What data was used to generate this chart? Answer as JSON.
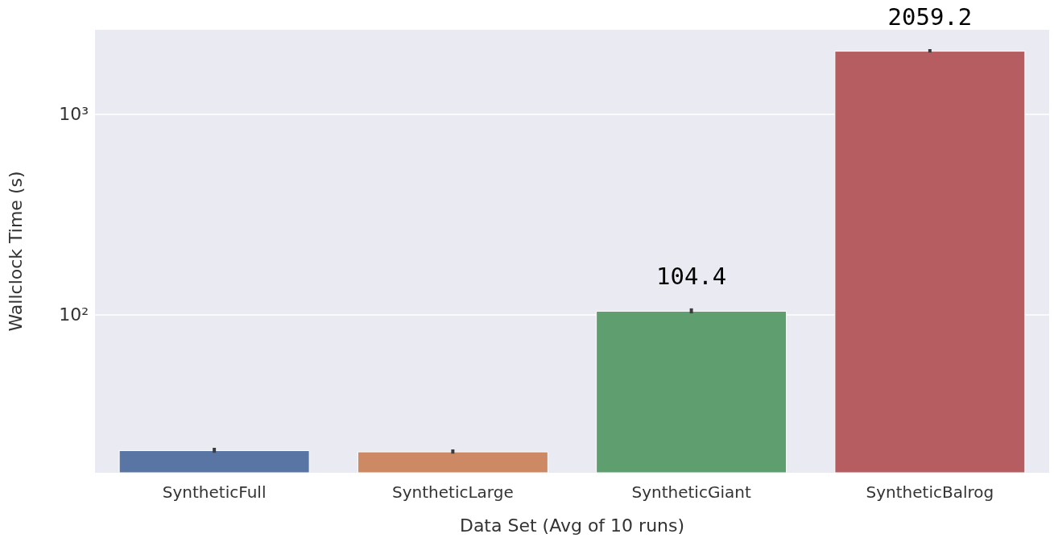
{
  "chart_data": {
    "type": "bar",
    "xlabel": "Data Set (Avg of 10 runs)",
    "ylabel": "Wallclock Time (s)",
    "categories": [
      "SyntheticFull",
      "SyntheticLarge",
      "SyntheticGiant",
      "SyntheticBalrog"
    ],
    "values": [
      21.1,
      20.8,
      104.4,
      2059.2
    ],
    "colors": [
      "#5875a4",
      "#cc8963",
      "#5f9e6e",
      "#b55d60"
    ],
    "errors": [
      0.6,
      0.5,
      3,
      40
    ],
    "value_labels": [
      null,
      null,
      "104.4",
      "2059.2"
    ],
    "log": "y",
    "ylim": [
      16.3,
      2620
    ],
    "yticks": [
      {
        "value": 100,
        "label": "10²"
      },
      {
        "value": 1000,
        "label": "10³"
      }
    ],
    "grid": "y"
  }
}
